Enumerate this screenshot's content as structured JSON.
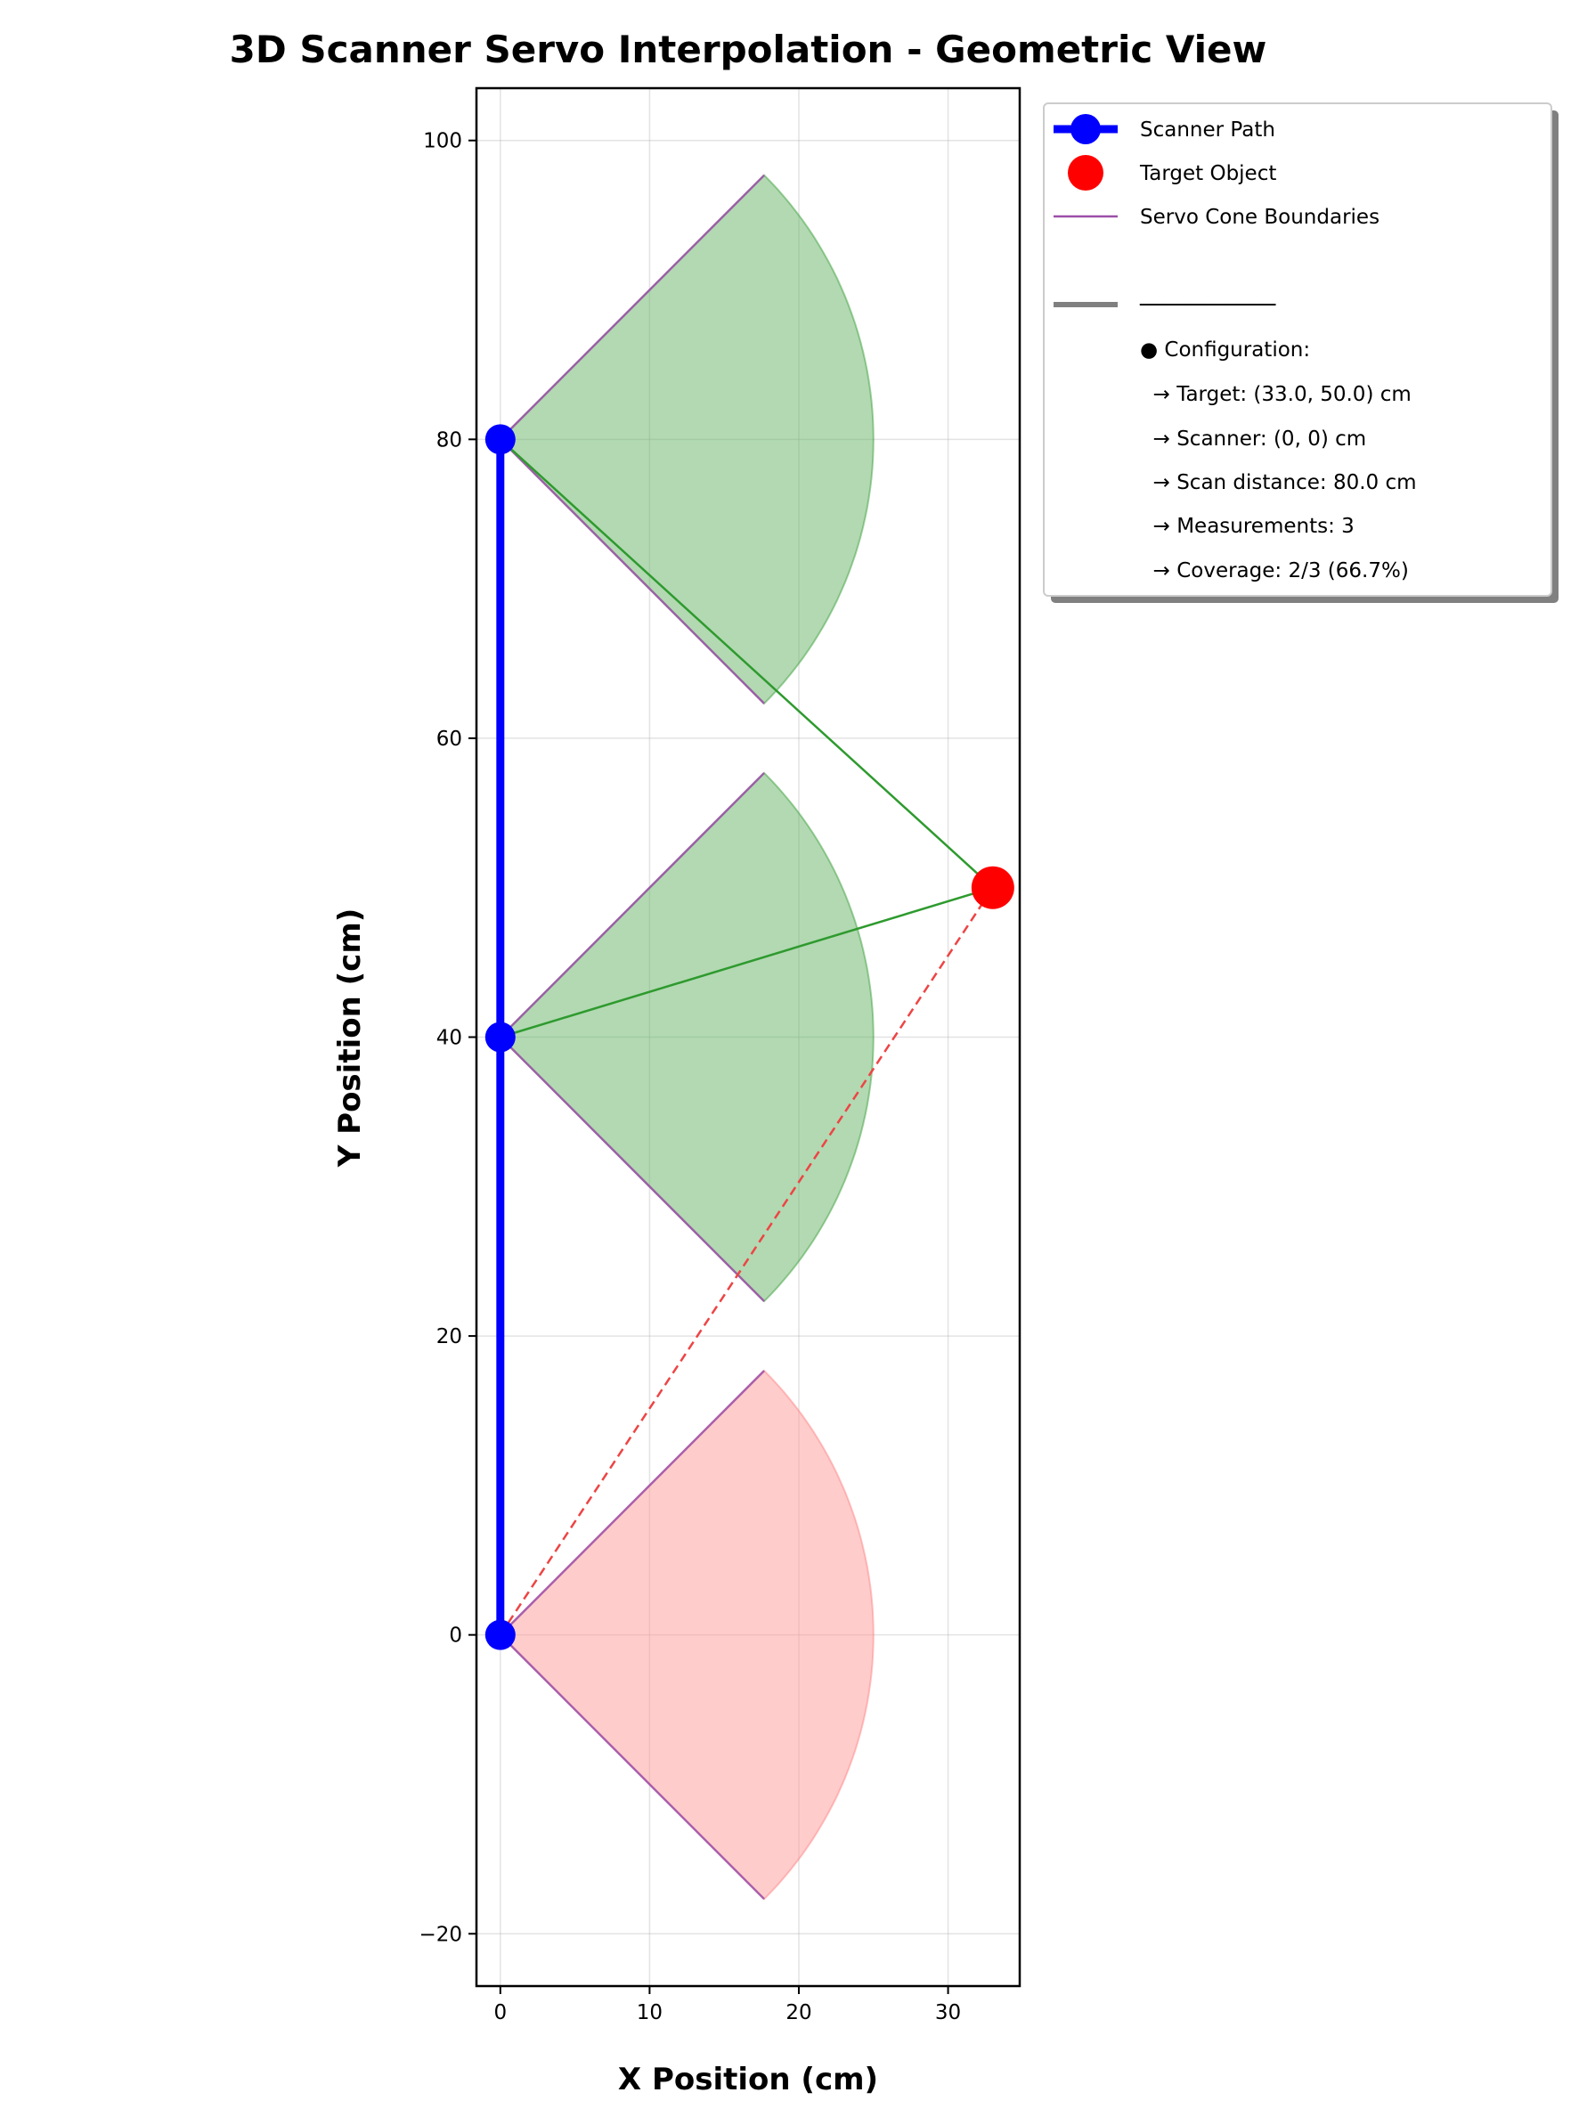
{
  "chart_data": {
    "type": "scatter",
    "title": "3D Scanner Servo Interpolation - Geometric View",
    "xlabel": "X Position (cm)",
    "ylabel": "Y Position (cm)",
    "xlim": [
      -1.6,
      34.8
    ],
    "ylim": [
      -23.5,
      103.5
    ],
    "xticks": [
      0,
      10,
      20,
      30
    ],
    "yticks": [
      -20,
      0,
      20,
      40,
      60,
      80,
      100
    ],
    "grid": true,
    "legend_position": "outside-right-top",
    "scanner_path": {
      "name": "Scanner Path",
      "color": "#0000ff",
      "points": [
        {
          "x": 0,
          "y": 0
        },
        {
          "x": 0,
          "y": 40
        },
        {
          "x": 0,
          "y": 80
        }
      ]
    },
    "target": {
      "name": "Target Object",
      "color": "#ff0000",
      "x": 33.0,
      "y": 50.0
    },
    "cones": [
      {
        "origin": [
          0,
          0
        ],
        "radius": 25,
        "half_angle_deg": 45,
        "detected": false,
        "fill": "#ff9999"
      },
      {
        "origin": [
          0,
          40
        ],
        "radius": 25,
        "half_angle_deg": 45,
        "detected": true,
        "fill": "#66b366"
      },
      {
        "origin": [
          0,
          80
        ],
        "radius": 25,
        "half_angle_deg": 45,
        "detected": true,
        "fill": "#66b366"
      }
    ],
    "cone_boundary_color": "#9b4fa8",
    "detection_line_color": "#2e9a2e",
    "miss_line_color": "#ee4444",
    "legend": {
      "entries": [
        {
          "label": "Scanner Path",
          "kind": "line-marker",
          "color": "#0000ff"
        },
        {
          "label": "Target Object",
          "kind": "marker",
          "color": "#ff0000"
        },
        {
          "label": "Servo Cone Boundaries",
          "kind": "line",
          "color": "#9b4fa8"
        },
        {
          "label": "",
          "kind": "spacer",
          "color": ""
        },
        {
          "label": "───────────",
          "kind": "line-thick",
          "color": "#808080"
        },
        {
          "label": "● Configuration:",
          "kind": "text",
          "color": ""
        },
        {
          "label": "  → Target: (33.0, 50.0) cm",
          "kind": "text",
          "color": ""
        },
        {
          "label": "  → Scanner: (0, 0) cm",
          "kind": "text",
          "color": ""
        },
        {
          "label": "  → Scan distance: 80.0 cm",
          "kind": "text",
          "color": ""
        },
        {
          "label": "  → Measurements: 3",
          "kind": "text",
          "color": ""
        },
        {
          "label": "  → Coverage: 2/3 (66.7%)",
          "kind": "text",
          "color": ""
        }
      ]
    }
  }
}
